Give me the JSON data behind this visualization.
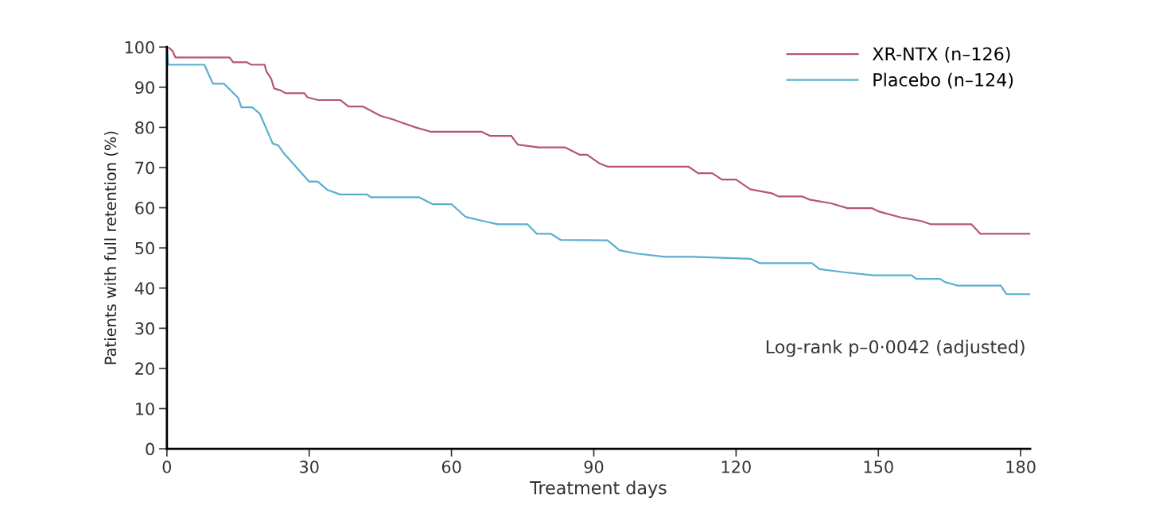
{
  "chart_data": {
    "type": "line",
    "xlabel": "Treatment days",
    "ylabel": "Patients with full retention (%)",
    "xlim": [
      0,
      182
    ],
    "ylim": [
      0,
      100
    ],
    "xticks": [
      0,
      30,
      60,
      90,
      120,
      150,
      180
    ],
    "yticks": [
      0,
      10,
      20,
      30,
      40,
      50,
      60,
      70,
      80,
      90,
      100
    ],
    "grid": false,
    "legend": "top right",
    "marker": "none",
    "line_style": "solid",
    "annotations": [
      "Log-rank p–0·0042 (adjusted)"
    ],
    "series": [
      {
        "name": "XR-NTX (n–126)",
        "color": "#b5566f",
        "x": [
          0,
          0.3,
          1.2,
          1.8,
          13.2,
          14,
          16.9,
          17.8,
          20.6,
          21,
          22,
          22.6,
          24,
          25,
          29,
          29.6,
          31.9,
          36.6,
          38.3,
          41.3,
          45,
          47.6,
          52.4,
          55.7,
          66.4,
          68.1,
          72.6,
          74,
          78.4,
          84,
          87,
          88.6,
          91.1,
          93,
          110,
          112,
          115,
          117,
          120,
          123,
          127.5,
          129,
          134,
          135.5,
          140,
          143.5,
          148.6,
          150,
          155,
          159,
          161,
          169.6,
          171.5,
          182
        ],
        "values": [
          100,
          100,
          99,
          97.4,
          97.4,
          96.2,
          96.2,
          95.6,
          95.6,
          93.9,
          92.1,
          89.7,
          89.2,
          88.5,
          88.5,
          87.5,
          86.8,
          86.8,
          85.2,
          85.2,
          82.9,
          82,
          80,
          78.9,
          78.9,
          77.9,
          77.9,
          75.7,
          75,
          75,
          73.2,
          73.2,
          71.1,
          70.2,
          70.2,
          68.6,
          68.6,
          67,
          67,
          64.6,
          63.6,
          62.8,
          62.8,
          62,
          61.1,
          59.9,
          59.9,
          59.1,
          57.5,
          56.7,
          55.9,
          55.9,
          53.5,
          53.5
        ]
      },
      {
        "name": "Placebo (n–124)",
        "color": "#5aafd0",
        "x": [
          0,
          0.3,
          7.9,
          9.7,
          12,
          15,
          15.7,
          18,
          19.6,
          22.3,
          23.5,
          24.7,
          30,
          31.8,
          33.9,
          36.5,
          42.2,
          43,
          53.2,
          56,
          60,
          63,
          67,
          69.7,
          76,
          78,
          81,
          83,
          92.9,
          95.4,
          99,
          105,
          111,
          123,
          125,
          136,
          137.6,
          143,
          149,
          157,
          158,
          163,
          164,
          166.8,
          175.8,
          177,
          182
        ],
        "values": [
          100,
          95.6,
          95.6,
          90.9,
          90.9,
          87.4,
          85,
          85,
          83.4,
          76,
          75.5,
          73.5,
          66.5,
          66.5,
          64.4,
          63.3,
          63.3,
          62.6,
          62.6,
          60.9,
          60.9,
          57.7,
          56.6,
          55.9,
          55.9,
          53.5,
          53.5,
          52,
          51.9,
          49.4,
          48.6,
          47.8,
          47.8,
          47.3,
          46.2,
          46.2,
          44.7,
          43.9,
          43.2,
          43.2,
          42.3,
          42.3,
          41.5,
          40.6,
          40.6,
          38.5,
          38.5
        ]
      }
    ]
  }
}
